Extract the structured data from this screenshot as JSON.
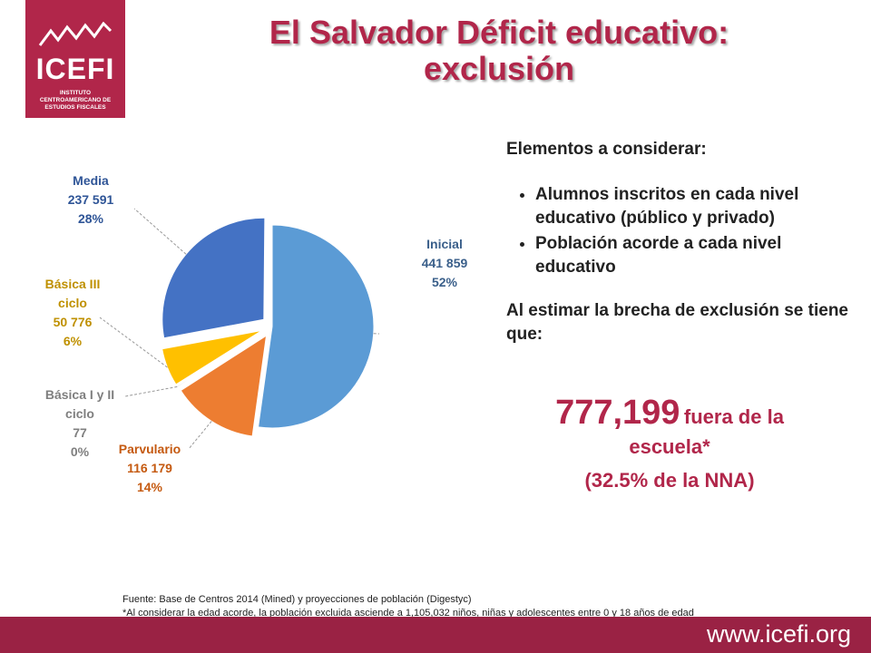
{
  "logo": {
    "brand": "ICEFI",
    "subtitle": "INSTITUTO CENTROAMERICANO DE ESTUDIOS FISCALES",
    "color": "#b1264a"
  },
  "title": {
    "line1": "El Salvador Déficit educativo:",
    "line2": "exclusión"
  },
  "chart_data": {
    "type": "pie",
    "title": "",
    "slices": [
      {
        "name": "Inicial",
        "value_label": "441 859",
        "value": 441859,
        "percent": 52,
        "percent_label": "52%",
        "color": "#5b9bd5",
        "exploded": false
      },
      {
        "name": "Parvulario",
        "value_label": "116 179",
        "value": 116179,
        "percent": 14,
        "percent_label": "14%",
        "color": "#ed7d31",
        "exploded": true
      },
      {
        "name": "Básica I y II ciclo",
        "value_label": "77",
        "value": 77,
        "percent": 0,
        "percent_label": "0%",
        "color": "#a5a5a5",
        "exploded": true
      },
      {
        "name": "Básica III ciclo",
        "value_label": "50 776",
        "value": 50776,
        "percent": 6,
        "percent_label": "6%",
        "color": "#ffc000",
        "exploded": true
      },
      {
        "name": "Media",
        "value_label": "237 591",
        "value": 237591,
        "percent": 28,
        "percent_label": "28%",
        "color": "#4472c4",
        "exploded": true
      }
    ],
    "label_colors": {
      "Inicial": "#3a5f8a",
      "Parvulario": "#c55a11",
      "Básica I y II ciclo": "#7f7f7f",
      "Básica III ciclo": "#bf9000",
      "Media": "#2f5597"
    },
    "legend": "none"
  },
  "notes": {
    "heading": "Elementos a considerar:",
    "bullets": [
      "Alumnos inscritos en cada nivel educativo (público y privado)",
      "Población acorde a cada nivel educativo"
    ],
    "conclusion": "Al estimar la brecha de exclusión se tiene que:"
  },
  "highlight": {
    "number": "777,199",
    "rest": "fuera de la escuela*",
    "pct": "(32.5% de la NNA)"
  },
  "footnote": {
    "source_label": "Fuente",
    "source": ": Base de Centros 2014 (Mined) y proyecciones de población (Digestyc)",
    "note": "*Al considerar la edad acorde, la población excluida asciende a 1,105,032  niños, niñas y adolescentes entre 0 y 18 años de edad"
  },
  "footer": {
    "url": "www.icefi.org",
    "color": "#9a2244"
  }
}
